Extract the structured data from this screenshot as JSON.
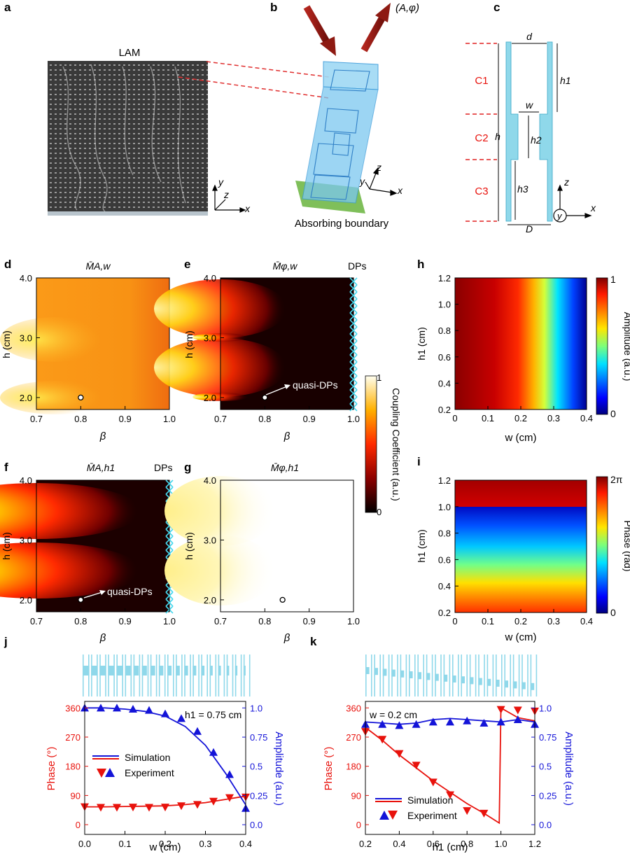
{
  "panel_labels": [
    "a",
    "b",
    "c",
    "d",
    "e",
    "f",
    "g",
    "h",
    "i",
    "j",
    "k"
  ],
  "colors": {
    "red": "#e8120c",
    "blue": "#1414d8",
    "cyan": "#8fd8ea",
    "green": "#7fbf5a"
  },
  "panel_a": {
    "title": "LAM",
    "axes": [
      "y",
      "z",
      "x"
    ]
  },
  "panel_b": {
    "output": "(A,φ)",
    "boundary": "Absorbing boundary",
    "axes": [
      "z",
      "y",
      "x"
    ]
  },
  "panel_c": {
    "sections": [
      "C1",
      "C2",
      "C3"
    ],
    "dims": [
      "d",
      "h1",
      "w",
      "h",
      "h2",
      "h3",
      "D"
    ],
    "axes": [
      "z",
      "y",
      "x"
    ]
  },
  "chart_data": [
    {
      "panel": "d",
      "type": "heatmap",
      "title": "M̄A,w",
      "xlabel": "β",
      "ylabel": "h (cm)",
      "xlim": [
        0.7,
        1.0
      ],
      "ylim": [
        1.8,
        4.0
      ],
      "xticks": [
        "0.7",
        "0.8",
        "0.9",
        "1.0"
      ],
      "yticks": [
        "2.0",
        "3.0",
        "4.0"
      ],
      "marker": {
        "x": 0.8,
        "y": 2.0
      }
    },
    {
      "panel": "e",
      "type": "heatmap",
      "title": "M̄φ,w",
      "xlabel": "β",
      "ylabel": "h (cm)",
      "xlim": [
        0.7,
        1.0
      ],
      "ylim": [
        1.8,
        4.0
      ],
      "xticks": [
        "0.7",
        "0.8",
        "0.9",
        "1.0"
      ],
      "yticks": [
        "2.0",
        "3.0",
        "4.0"
      ],
      "marker": {
        "x": 0.8,
        "y": 2.0
      },
      "annotation": "quasi-DPs",
      "corner_label": "DPs"
    },
    {
      "panel": "f",
      "type": "heatmap",
      "title": "M̄A,h1",
      "xlabel": "β",
      "ylabel": "h (cm)",
      "xlim": [
        0.7,
        1.0
      ],
      "ylim": [
        1.8,
        4.0
      ],
      "xticks": [
        "0.7",
        "0.8",
        "0.9",
        "1.0"
      ],
      "yticks": [
        "2.0",
        "3.0",
        "4.0"
      ],
      "marker": {
        "x": 0.8,
        "y": 2.0
      },
      "annotation": "quasi-DPs",
      "corner_label": "DPs"
    },
    {
      "panel": "g",
      "type": "heatmap",
      "title": "M̄φ,h1",
      "xlabel": "β",
      "ylabel": "h (cm)",
      "xlim": [
        0.7,
        1.0
      ],
      "ylim": [
        1.8,
        4.0
      ],
      "xticks": [
        "0.7",
        "0.8",
        "0.9",
        "1.0"
      ],
      "yticks": [
        "2.0",
        "3.0",
        "4.0"
      ],
      "marker": {
        "x": 0.84,
        "y": 2.0
      }
    },
    {
      "panel": "cbar",
      "type": "colorbar",
      "label": "Coupling Coefficient (a.u.)",
      "range": [
        0,
        1
      ],
      "ticks": [
        "0",
        "1"
      ]
    },
    {
      "panel": "h",
      "type": "heatmap",
      "xlabel": "w (cm)",
      "ylabel": "h1 (cm)",
      "xlim": [
        0,
        0.4
      ],
      "ylim": [
        0.2,
        1.2
      ],
      "xticks": [
        "0",
        "0.1",
        "0.2",
        "0.3",
        "0.4"
      ],
      "yticks": [
        "0.2",
        "0.4",
        "0.6",
        "0.8",
        "1.0",
        "1.2"
      ],
      "colorbar": {
        "label": "Amplitude (a.u.)",
        "ticks": [
          "0",
          "1"
        ]
      }
    },
    {
      "panel": "i",
      "type": "heatmap",
      "xlabel": "w (cm)",
      "ylabel": "h1 (cm)",
      "xlim": [
        0,
        0.4
      ],
      "ylim": [
        0.2,
        1.2
      ],
      "xticks": [
        "0",
        "0.1",
        "0.2",
        "0.3",
        "0.4"
      ],
      "yticks": [
        "0.2",
        "0.4",
        "0.6",
        "0.8",
        "1.0",
        "1.2"
      ],
      "colorbar": {
        "label": "Phase (rad)",
        "ticks": [
          "0",
          "2π"
        ]
      }
    },
    {
      "panel": "j",
      "type": "line",
      "xlabel": "w (cm)",
      "annotation": "h1 = 0.75 cm",
      "xlim": [
        0,
        0.4
      ],
      "xticks": [
        "0.0",
        "0.1",
        "0.2",
        "0.3",
        "0.4"
      ],
      "y_left": {
        "label": "Phase (°)",
        "lim": [
          -30,
          380
        ],
        "ticks": [
          "0",
          "90",
          "180",
          "270",
          "360"
        ]
      },
      "y_right": {
        "label": "Amplitude (a.u.)",
        "lim": [
          -0.083,
          1.056
        ],
        "ticks": [
          "0.0",
          "0.25",
          "0.5",
          "0.75",
          "1.0"
        ]
      },
      "legend": [
        "Simulation",
        "Experiment"
      ],
      "series": [
        {
          "name": "Phase simulation",
          "axis": "left",
          "x": [
            0,
            0.05,
            0.1,
            0.15,
            0.2,
            0.25,
            0.3,
            0.35,
            0.4
          ],
          "y": [
            55,
            55,
            56,
            57,
            58,
            62,
            68,
            78,
            88
          ]
        },
        {
          "name": "Phase experiment",
          "axis": "left",
          "x": [
            0,
            0.04,
            0.08,
            0.12,
            0.16,
            0.2,
            0.24,
            0.28,
            0.32,
            0.36,
            0.4
          ],
          "y": [
            55,
            53,
            53,
            54,
            53,
            54,
            58,
            62,
            72,
            83,
            85
          ]
        },
        {
          "name": "Amplitude simulation",
          "axis": "right",
          "x": [
            0,
            0.05,
            0.1,
            0.15,
            0.2,
            0.25,
            0.3,
            0.35,
            0.4
          ],
          "y": [
            1.0,
            1.0,
            0.99,
            0.97,
            0.93,
            0.84,
            0.68,
            0.44,
            0.17
          ]
        },
        {
          "name": "Amplitude experiment",
          "axis": "right",
          "x": [
            0,
            0.04,
            0.08,
            0.12,
            0.16,
            0.2,
            0.24,
            0.28,
            0.32,
            0.36,
            0.4
          ],
          "y": [
            1.0,
            1.0,
            1.0,
            0.99,
            0.98,
            0.95,
            0.91,
            0.8,
            0.62,
            0.43,
            0.14
          ]
        }
      ]
    },
    {
      "panel": "k",
      "type": "line",
      "xlabel": "h1 (cm)",
      "annotation": "w = 0.2 cm",
      "xlim": [
        0.2,
        1.2
      ],
      "xticks": [
        "0.2",
        "0.4",
        "0.6",
        "0.8",
        "1.0",
        "1.2"
      ],
      "y_left": {
        "label": "Phase (°)",
        "lim": [
          -30,
          380
        ],
        "ticks": [
          "0",
          "90",
          "180",
          "270",
          "360"
        ]
      },
      "y_right": {
        "label": "Amplitude (a.u.)",
        "lim": [
          -0.083,
          1.056
        ],
        "ticks": [
          "0.0",
          "0.25",
          "0.5",
          "0.75",
          "1.0"
        ]
      },
      "legend": [
        "Simulation",
        "Experiment"
      ],
      "series": [
        {
          "name": "Phase simulation",
          "axis": "left",
          "x": [
            0.2,
            0.3,
            0.4,
            0.5,
            0.6,
            0.7,
            0.8,
            0.9,
            0.99,
            1.0,
            1.1,
            1.2
          ],
          "y": [
            300,
            260,
            215,
            175,
            135,
            100,
            65,
            35,
            5,
            360,
            330,
            320
          ]
        },
        {
          "name": "Phase experiment",
          "axis": "left",
          "x": [
            0.2,
            0.3,
            0.4,
            0.5,
            0.6,
            0.7,
            0.8,
            0.9,
            1.0,
            1.1,
            1.2
          ],
          "y": [
            287,
            263,
            219,
            183,
            131,
            92,
            43,
            35,
            355,
            353,
            350
          ]
        },
        {
          "name": "Amplitude simulation",
          "axis": "right",
          "x": [
            0.2,
            0.3,
            0.4,
            0.5,
            0.6,
            0.7,
            0.8,
            0.9,
            1.0,
            1.1,
            1.2
          ],
          "y": [
            0.88,
            0.87,
            0.86,
            0.87,
            0.9,
            0.91,
            0.9,
            0.89,
            0.88,
            0.9,
            0.88
          ]
        },
        {
          "name": "Amplitude experiment",
          "axis": "right",
          "x": [
            0.2,
            0.3,
            0.4,
            0.5,
            0.6,
            0.7,
            0.8,
            0.9,
            1.0,
            1.1,
            1.2
          ],
          "y": [
            0.86,
            0.86,
            0.85,
            0.86,
            0.88,
            0.88,
            0.89,
            0.87,
            0.88,
            0.9,
            0.86
          ]
        }
      ]
    }
  ]
}
